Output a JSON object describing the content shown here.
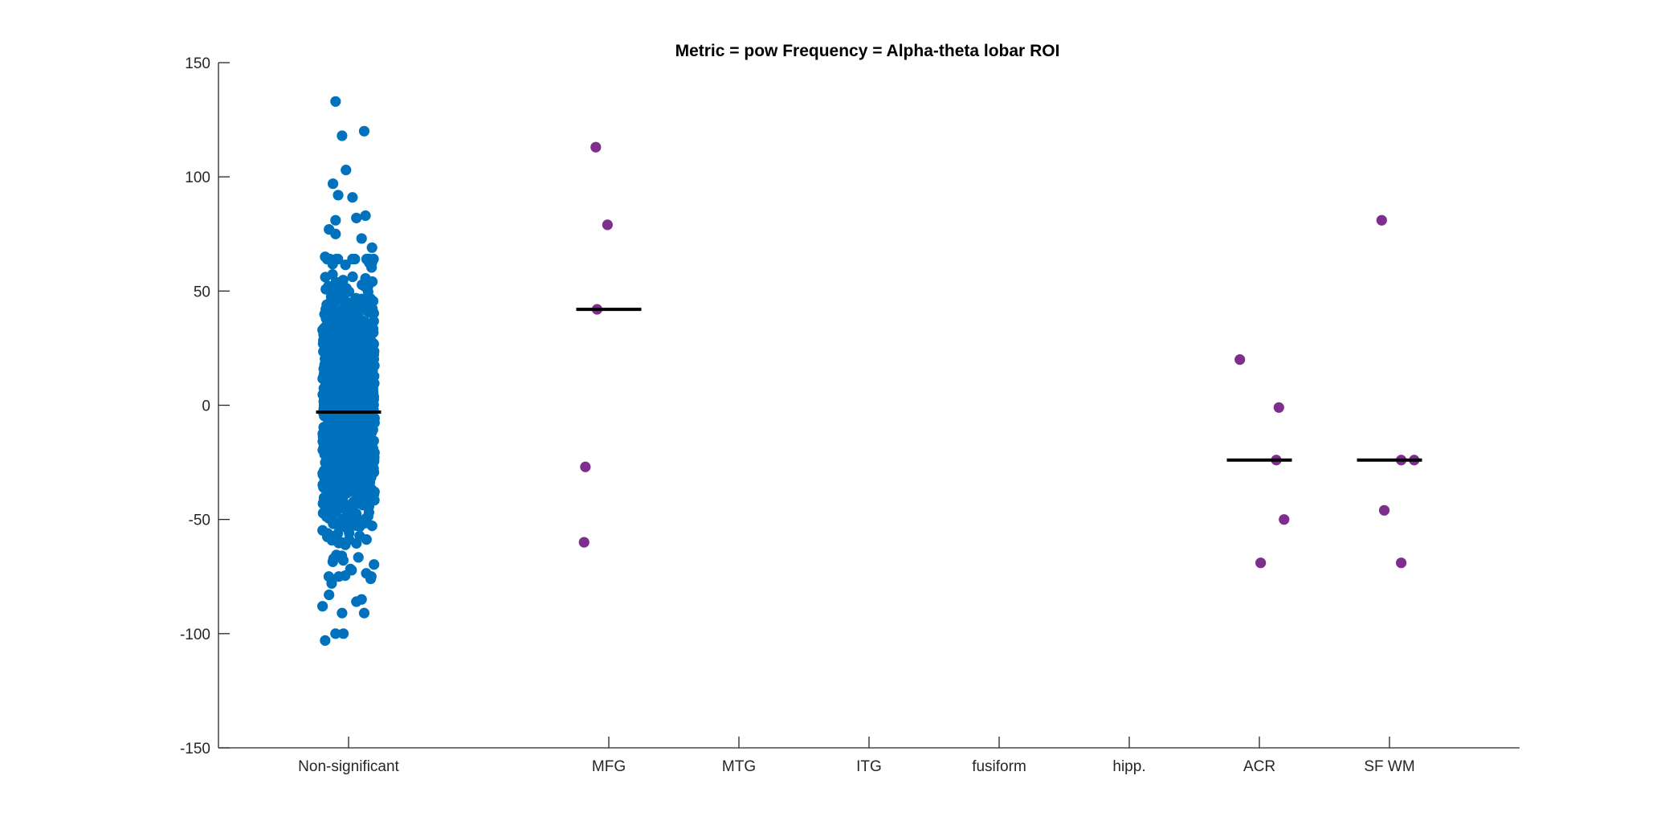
{
  "chart_data": {
    "type": "scatter",
    "title": "Metric = pow Frequency = Alpha-theta lobar ROI",
    "xlabel": "",
    "ylabel": "",
    "ylim": [
      -150,
      150
    ],
    "yticks": [
      -150,
      -100,
      -50,
      0,
      50,
      100,
      150
    ],
    "xlim": [
      0,
      10
    ],
    "categories": [
      {
        "label": "Non-significant",
        "x": 1
      },
      {
        "label": "MFG",
        "x": 3
      },
      {
        "label": "MTG",
        "x": 4
      },
      {
        "label": "ITG",
        "x": 5
      },
      {
        "label": "fusiform",
        "x": 6
      },
      {
        "label": "hipp.",
        "x": 7
      },
      {
        "label": "ACR",
        "x": 8
      },
      {
        "label": "SF WM",
        "x": 9
      }
    ],
    "grid": false,
    "legend": "none",
    "colors": {
      "nonsig": "#0072BD",
      "sig": "#7E2F8E",
      "median": "#000000",
      "axis": "#262626"
    },
    "series": [
      {
        "category": "Non-significant",
        "style": "nonsig",
        "median": -3,
        "n_points": 1200,
        "distribution_sd": 27,
        "outliers": [
          [
            -0.1,
            133
          ],
          [
            0.12,
            120
          ],
          [
            -0.05,
            118
          ],
          [
            -0.02,
            103
          ],
          [
            -0.12,
            97
          ],
          [
            -0.08,
            92
          ],
          [
            0.03,
            91
          ],
          [
            0.13,
            83
          ],
          [
            0.06,
            82
          ],
          [
            -0.1,
            81
          ],
          [
            -0.15,
            77
          ],
          [
            -0.1,
            75
          ],
          [
            0.1,
            73
          ],
          [
            0.18,
            69
          ],
          [
            -0.18,
            65
          ],
          [
            -0.2,
            -88
          ],
          [
            -0.05,
            -91
          ],
          [
            0.12,
            -91
          ],
          [
            -0.18,
            -103
          ],
          [
            -0.1,
            -100
          ],
          [
            -0.04,
            -100
          ],
          [
            0.06,
            -86
          ],
          [
            0.1,
            -85
          ],
          [
            -0.15,
            -83
          ],
          [
            0.17,
            -76
          ],
          [
            -0.13,
            -78
          ]
        ]
      },
      {
        "category": "MFG",
        "style": "sig",
        "median": 42,
        "points": [
          [
            -0.1,
            113
          ],
          [
            -0.01,
            79
          ],
          [
            -0.09,
            42
          ],
          [
            -0.18,
            -27
          ],
          [
            -0.19,
            -60
          ]
        ]
      },
      {
        "category": "ACR",
        "style": "sig",
        "median": -24,
        "points": [
          [
            -0.15,
            20
          ],
          [
            0.15,
            -1
          ],
          [
            0.13,
            -24
          ],
          [
            0.19,
            -50
          ],
          [
            0.01,
            -69
          ]
        ]
      },
      {
        "category": "SF WM",
        "style": "sig",
        "median": -24,
        "points": [
          [
            -0.06,
            81
          ],
          [
            0.09,
            -24
          ],
          [
            0.19,
            -24
          ],
          [
            -0.04,
            -46
          ],
          [
            0.09,
            -69
          ]
        ]
      }
    ]
  }
}
